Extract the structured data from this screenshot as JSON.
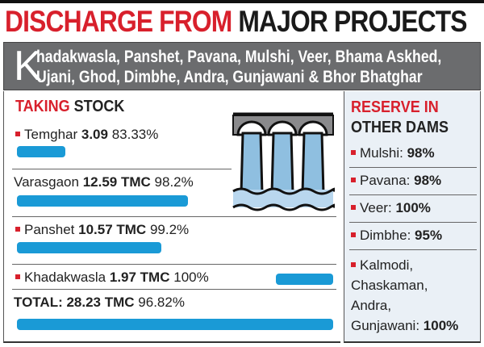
{
  "title": {
    "red": "DISCHARGE FROM",
    "black": "MAJOR PROJECTS"
  },
  "subtitle": {
    "initial": "K",
    "line1": "hadakwasla, Panshet, Pavana, Mulshi, Veer, Bhama Askhed,",
    "line2": "Ujani, Ghod, Dimbhe, Andra, Gunjawani & Bhor Bhatghar"
  },
  "taking_stock": {
    "heading_red": "TAKING",
    "heading_black": "STOCK",
    "items": [
      {
        "name": "Temghar",
        "amount": "3.09",
        "percent": "83.33%",
        "bar_fraction": 0.11
      },
      {
        "name": "Varasgaon",
        "amount": "12.59 TMC",
        "percent": "98.2%",
        "bar_fraction": 0.45
      },
      {
        "name": "Panshet",
        "amount": "10.57 TMC",
        "percent": "99.2%",
        "bar_fraction": 0.38
      },
      {
        "name": "Khadakwasla",
        "amount": "1.97 TMC",
        "percent": "100%",
        "bar_fraction": 0.07
      }
    ],
    "total": {
      "label": "TOTAL: 28.23 TMC",
      "percent": "96.82%",
      "bar_fraction": 1.0
    }
  },
  "reserve": {
    "heading_red": "RESERVE IN",
    "heading_black": "OTHER DAMS",
    "items": [
      {
        "name": "Mulshi:",
        "value": "98%"
      },
      {
        "name": "Pavana:",
        "value": "98%"
      },
      {
        "name": "Veer:",
        "value": "100%"
      },
      {
        "name": "Dimbhe:",
        "value": "95%"
      }
    ],
    "last": {
      "l1": "Kalmodi,",
      "l2": "Chaskaman,",
      "l3": "Andra,",
      "l4": "Gunjawani:",
      "value": "100%"
    }
  },
  "colors": {
    "accent_red": "#d8202c",
    "bar_blue": "#1a9ad6",
    "panel_gray": "#6b6c6e"
  },
  "icon": "dam-icon"
}
